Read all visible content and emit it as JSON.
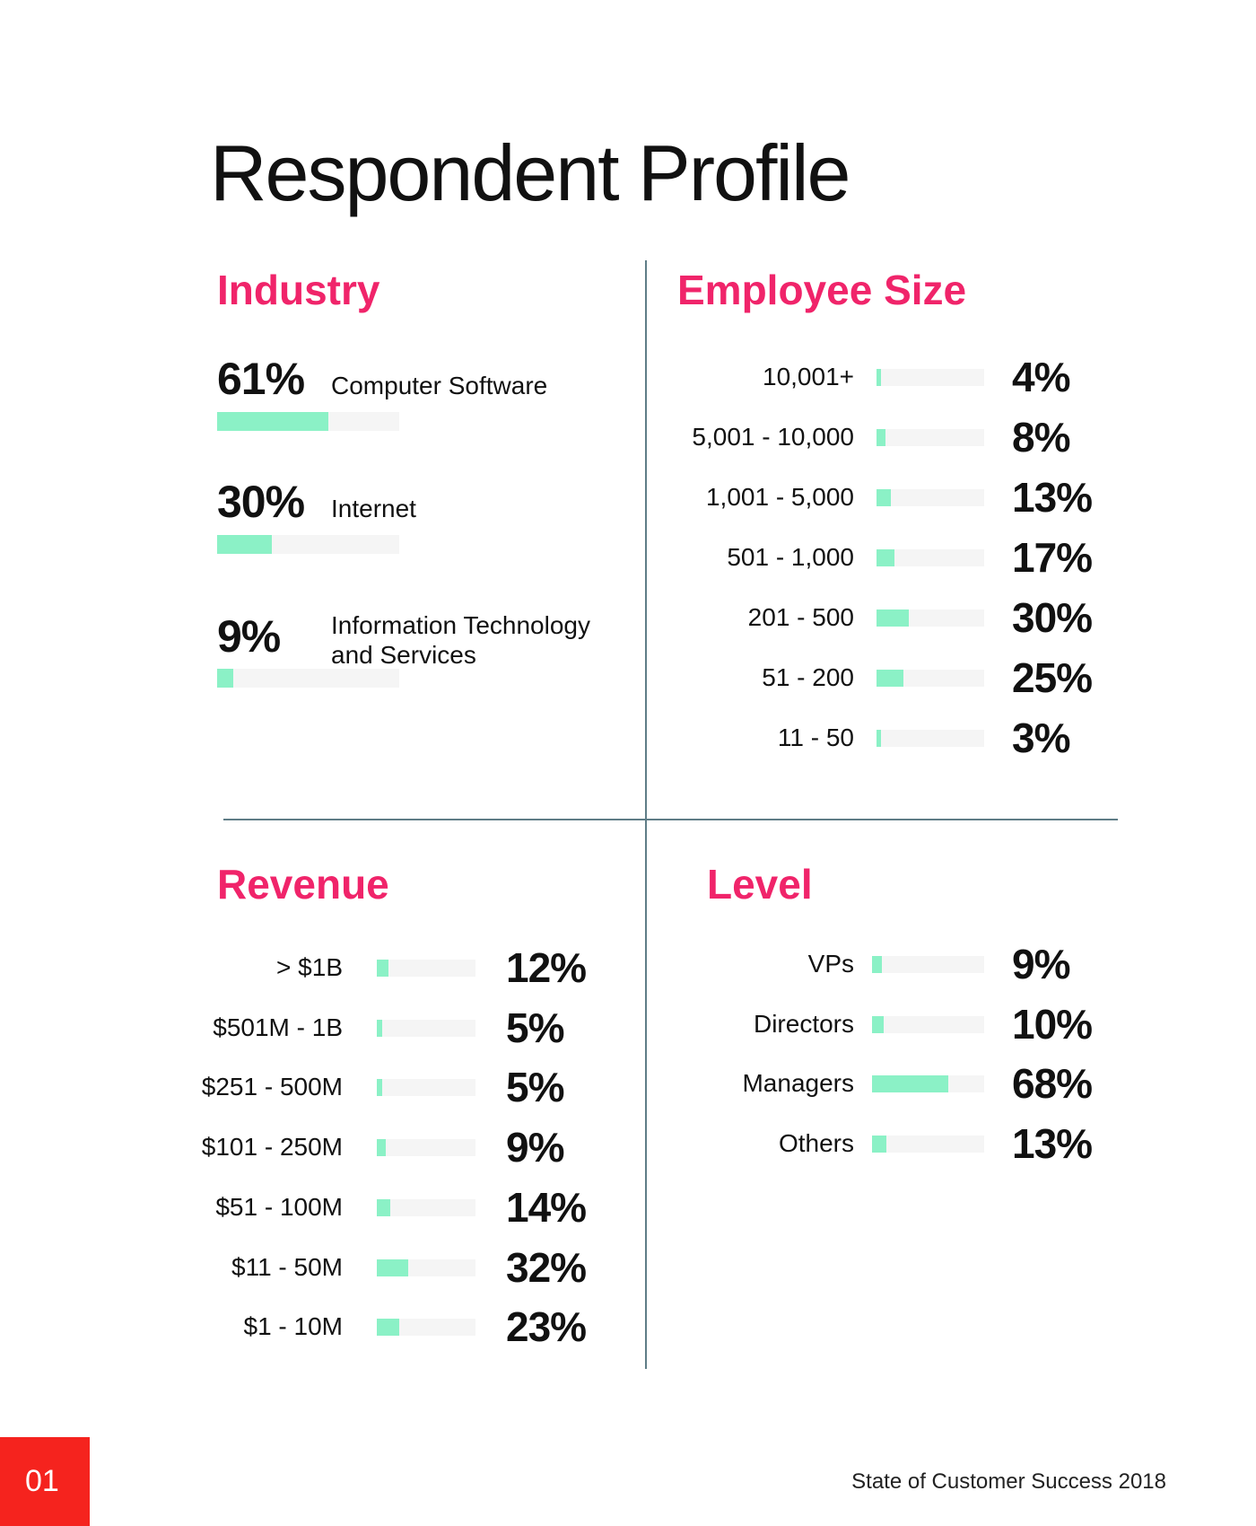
{
  "page": {
    "title": "Respondent Profile",
    "page_number": "01",
    "footer": "State of Customer Success 2018"
  },
  "colors": {
    "accent": "#f0246a",
    "bar_fill": "#8bf1c6",
    "bar_track": "#f5f5f5",
    "divider": "#5f7d87",
    "page_box": "#f5231e"
  },
  "chart_data": [
    {
      "type": "bar",
      "title": "Industry",
      "categories": [
        "Computer Software",
        "Internet",
        "Information Technology\nand Services"
      ],
      "values": [
        61,
        30,
        9
      ],
      "value_labels": [
        "61%",
        "30%",
        "9%"
      ],
      "unit": "%",
      "ylim": [
        0,
        100
      ]
    },
    {
      "type": "bar",
      "title": "Employee Size",
      "categories": [
        "10,001+",
        "5,001 - 10,000",
        "1,001 - 5,000",
        "501 - 1,000",
        "201 - 500",
        "51 - 200",
        "11 - 50"
      ],
      "values": [
        4,
        8,
        13,
        17,
        30,
        25,
        3
      ],
      "value_labels": [
        "4%",
        "8%",
        "13%",
        "17%",
        "30%",
        "25%",
        "3%"
      ],
      "unit": "%",
      "ylim": [
        0,
        100
      ]
    },
    {
      "type": "bar",
      "title": "Revenue",
      "categories": [
        "> $1B",
        "$501M - 1B",
        "$251 - 500M",
        "$101 - 250M",
        "$51 - 100M",
        "$11 - 50M",
        "$1 - 10M"
      ],
      "values": [
        12,
        5,
        5,
        9,
        14,
        32,
        23
      ],
      "value_labels": [
        "12%",
        "5%",
        "5%",
        "9%",
        "14%",
        "32%",
        "23%"
      ],
      "unit": "%",
      "ylim": [
        0,
        100
      ]
    },
    {
      "type": "bar",
      "title": "Level",
      "categories": [
        "VPs",
        "Directors",
        "Managers",
        "Others"
      ],
      "values": [
        9,
        10,
        68,
        13
      ],
      "value_labels": [
        "9%",
        "10%",
        "68%",
        "13%"
      ],
      "unit": "%",
      "ylim": [
        0,
        100
      ]
    }
  ]
}
